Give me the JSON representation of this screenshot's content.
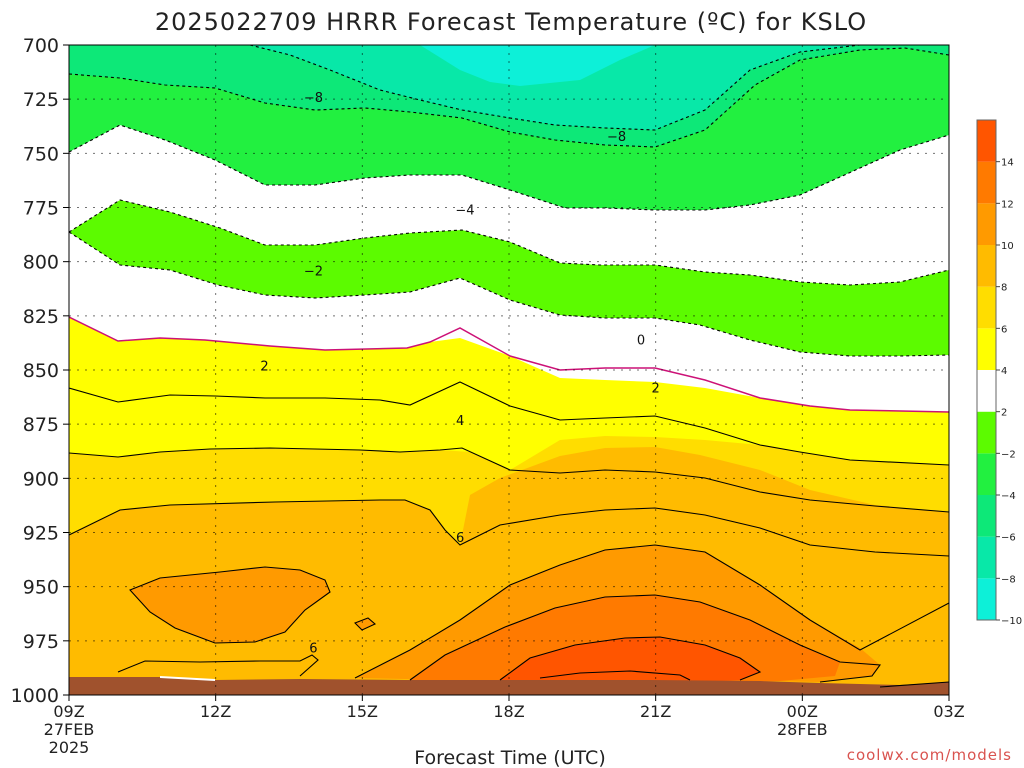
{
  "chart_data": {
    "type": "contour",
    "title": "2025022709 HRRR Forecast Temperature (ºC) for KSLO",
    "xlabel": "Forecast Time (UTC)",
    "x_ticks": [
      {
        "label": "09Z",
        "sub": [
          "27FEB",
          "2025"
        ]
      },
      {
        "label": "12Z",
        "sub": []
      },
      {
        "label": "15Z",
        "sub": []
      },
      {
        "label": "18Z",
        "sub": []
      },
      {
        "label": "21Z",
        "sub": []
      },
      {
        "label": "00Z",
        "sub": [
          "28FEB"
        ]
      },
      {
        "label": "03Z",
        "sub": []
      }
    ],
    "x_hours": [
      9,
      12,
      15,
      18,
      21,
      24,
      27
    ],
    "ylim": [
      700,
      1000
    ],
    "y_ticks": [
      700,
      725,
      750,
      775,
      800,
      825,
      850,
      875,
      900,
      925,
      950,
      975,
      1000
    ],
    "grid": true,
    "colorbar": {
      "position": "right",
      "ticks": [
        "14",
        "12",
        "10",
        "8",
        "6",
        "4",
        "2",
        "−2",
        "−4",
        "−6",
        "−8",
        "−10"
      ],
      "colors": [
        "#0df0d8",
        "#08e8a8",
        "#0de878",
        "#22f040",
        "#5cfb00",
        "#ffffff",
        "#ffff00",
        "#ffdd00",
        "#ffbb00",
        "#ff9a00",
        "#ff7a00",
        "#ff5500"
      ]
    },
    "contour_labels": [
      {
        "text": "−8",
        "hour": 14,
        "p": 724
      },
      {
        "text": "−8",
        "hour": 20.2,
        "p": 742
      },
      {
        "text": "−4",
        "hour": 17.1,
        "p": 776
      },
      {
        "text": "−2",
        "hour": 14,
        "p": 804
      },
      {
        "text": "0",
        "hour": 20.7,
        "p": 836
      },
      {
        "text": "2",
        "hour": 13,
        "p": 848
      },
      {
        "text": "2",
        "hour": 21,
        "p": 858
      },
      {
        "text": "4",
        "hour": 17,
        "p": 873
      },
      {
        "text": "6",
        "hour": 17,
        "p": 927
      },
      {
        "text": "6",
        "hour": 14,
        "p": 978
      }
    ],
    "credit": "coolwx.com/models"
  }
}
